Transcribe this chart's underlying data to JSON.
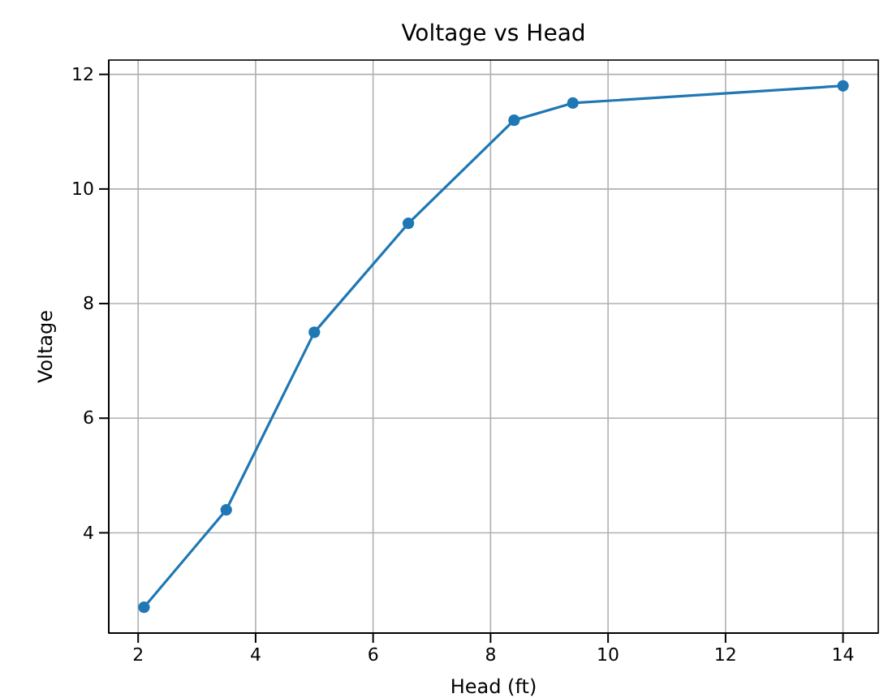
{
  "chart_data": {
    "type": "line",
    "title": "Voltage vs Head",
    "xlabel": "Head (ft)",
    "ylabel": "Voltage",
    "x": [
      2.1,
      3.5,
      5.0,
      6.6,
      8.4,
      9.4,
      14.0
    ],
    "series": [
      {
        "color": "#1f77b4",
        "values": [
          2.7,
          4.4,
          7.5,
          9.4,
          11.2,
          11.5,
          11.8
        ]
      }
    ],
    "xlim": [
      1.5,
      14.6
    ],
    "ylim": [
      2.25,
      12.25
    ],
    "xticks": [
      2,
      4,
      6,
      8,
      10,
      12,
      14
    ],
    "yticks": [
      4,
      6,
      8,
      10,
      12
    ],
    "grid": true,
    "marker": "circle",
    "line_style": "solid"
  }
}
